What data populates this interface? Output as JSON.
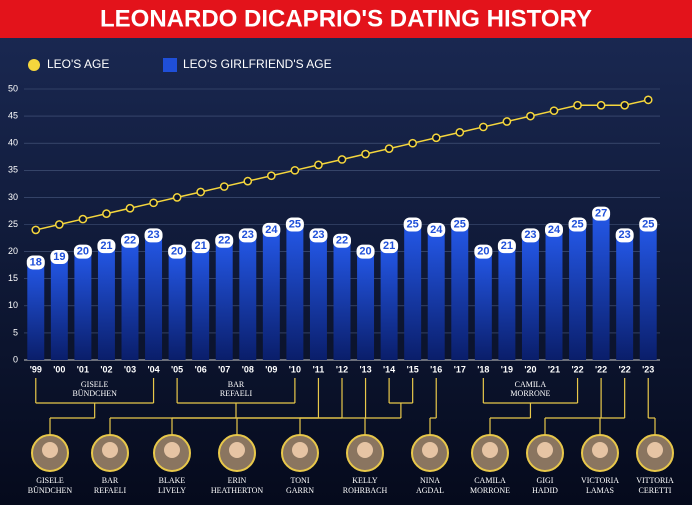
{
  "chart_data": {
    "type": "bar_line",
    "title": "LEONARDO DICAPRIO'S DATING HISTORY",
    "categories": [
      "'99",
      "'00",
      "'01",
      "'02",
      "'03",
      "'04",
      "'05",
      "'06",
      "'07",
      "'08",
      "'09",
      "'10",
      "'11",
      "'12",
      "'13",
      "'14",
      "'15",
      "'16",
      "'17",
      "'18",
      "'19",
      "'20",
      "'21",
      "'22",
      "'22",
      "'22",
      "'23"
    ],
    "series": [
      {
        "name": "LEO'S AGE",
        "color": "#f5d63d",
        "kind": "line",
        "values": [
          24,
          25,
          26,
          27,
          28,
          29,
          30,
          31,
          32,
          33,
          34,
          35,
          36,
          37,
          38,
          39,
          40,
          41,
          42,
          43,
          44,
          45,
          46,
          47,
          47,
          47,
          48
        ]
      },
      {
        "name": "LEO'S GIRLFRIEND'S AGE",
        "color": "#1f4fd8",
        "kind": "bar",
        "values": [
          18,
          19,
          20,
          21,
          22,
          23,
          20,
          21,
          22,
          23,
          24,
          25,
          23,
          22,
          20,
          21,
          25,
          24,
          25,
          20,
          21,
          23,
          24,
          25,
          27,
          23,
          25
        ]
      }
    ],
    "ylim": [
      0,
      50
    ],
    "yticks": [
      0,
      5,
      10,
      15,
      20,
      25,
      30,
      35,
      40,
      45,
      50
    ],
    "grid": true,
    "group_labels": [
      [
        "GISELE",
        "BÜNDCHEN"
      ],
      [
        "BAR",
        "REFAELI"
      ],
      [
        "CAMILA",
        "MORRONE"
      ]
    ],
    "girlfriends": [
      [
        "GISELE",
        "BÜNDCHEN"
      ],
      [
        "BAR",
        "REFAELI"
      ],
      [
        "BLAKE",
        "LIVELY"
      ],
      [
        "ERIN",
        "HEATHERTON"
      ],
      [
        "TONI",
        "GARRN"
      ],
      [
        "KELLY",
        "ROHRBACH"
      ],
      [
        "NINA",
        "AGDAL"
      ],
      [
        "CAMILA",
        "MORRONE"
      ],
      [
        "GIGI",
        "HADID"
      ],
      [
        "VICTORIA",
        "LAMAS"
      ],
      [
        "VITTORIA",
        "CERETTI"
      ]
    ]
  }
}
